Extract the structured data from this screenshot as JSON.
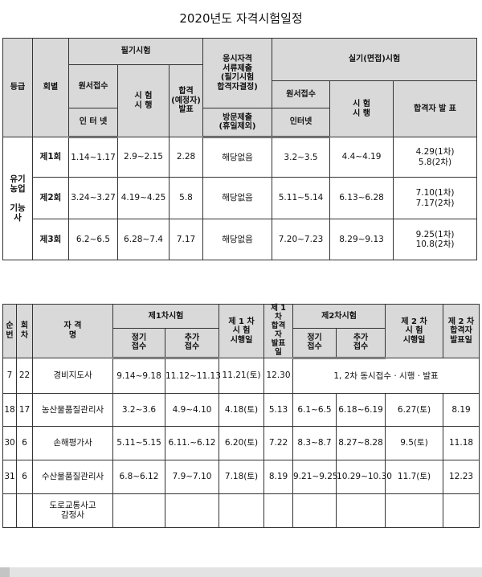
{
  "title": "2020년도 자격시험일정",
  "t1": {
    "h": {
      "grade": "등급",
      "round": "회별",
      "written": "필기시험",
      "qual": "응시자격\n서류제출\n(필기시험\n합격자결정)",
      "practical": "실기(면접)시험",
      "w_apply": "원서접수",
      "w_exam": "시 험\n시 행",
      "w_pass": "합격\n(예정자)\n발표",
      "p_apply": "원서접수",
      "p_exam": "시 험\n시 행",
      "p_pass": "합격자 발  표",
      "w_internet": "인 터 넷",
      "visit": "방문제출\n(휴일제외)",
      "p_internet": "인터넷"
    },
    "grade_name": "유기\n농업\n\n기능\n사",
    "rows": [
      {
        "round": "제1회",
        "w_apply": "1.14~1.17",
        "w_exam": "2.9~2.15",
        "w_pass": "2.28",
        "qual": "해당없음",
        "p_apply": "3.2~3.5",
        "p_exam": "4.4~4.19",
        "p_pass": "4.29(1차)\n5.8(2차)"
      },
      {
        "round": "제2회",
        "w_apply": "3.24~3.27",
        "w_exam": "4.19~4.25",
        "w_pass": "5.8",
        "qual": "해당없음",
        "p_apply": "5.11~5.14",
        "p_exam": "6.13~6.28",
        "p_pass": "7.10(1차)\n7.17(2차)"
      },
      {
        "round": "제3회",
        "w_apply": "6.2~6.5",
        "w_exam": "6.28~7.4",
        "w_pass": "7.17",
        "qual": "해당없음",
        "p_apply": "7.20~7.23",
        "p_exam": "8.29~9.13",
        "p_pass": "9.25(1차)\n10.8(2차)"
      }
    ]
  },
  "t2": {
    "h": {
      "no": "순\n번",
      "times": "회\n차",
      "name": "자       격\n명",
      "first": "제1차시험",
      "f_reg": "정기\n접수",
      "f_add": "추가\n접수",
      "f_date": "제 1 차\n시 험\n시행일",
      "f_pass": "제 1\n차\n합격\n자\n발표\n일",
      "second": "제2차시험",
      "s_reg": "정기\n접수",
      "s_add": "추가\n접수",
      "s_date": "제 2 차\n시  험\n시행일",
      "s_pass": "제 2 차\n합격자\n발표일"
    },
    "rows": [
      {
        "no": "7",
        "times": "22",
        "name": "경비지도사",
        "f_reg": "9.14~9.18",
        "f_add": "11.12~11.13",
        "f_date": "11.21(토)",
        "f_pass": "12.30",
        "note": "1, 2차 동시접수 · 시행 · 발표"
      },
      {
        "no": "18",
        "times": "17",
        "name": "농산물품질관리사",
        "f_reg": "3.2~3.6",
        "f_add": "4.9~4.10",
        "f_date": "4.18(토)",
        "f_pass": "5.13",
        "s_reg": "6.1~6.5",
        "s_add": "6.18~6.19",
        "s_date": "6.27(토)",
        "s_pass": "8.19"
      },
      {
        "no": "30",
        "times": "6",
        "name": "손해평가사",
        "f_reg": "5.11~5.15",
        "f_add": "6.11.~6.12",
        "f_date": "6.20(토)",
        "f_pass": "7.22",
        "s_reg": "8.3~8.7",
        "s_add": "8.27~8.28",
        "s_date": "9.5(토)",
        "s_pass": "11.18"
      },
      {
        "no": "31",
        "times": "6",
        "name": "수산물품질관리사",
        "f_reg": "6.8~6.12",
        "f_add": "7.9~7.10",
        "f_date": "7.18(토)",
        "f_pass": "8.19",
        "s_reg": "9.21~9.25",
        "s_add": "10.29~10.30",
        "s_date": "11.7(토)",
        "s_pass": "12.23"
      },
      {
        "no": "",
        "times": "",
        "name": "도로교통사고\n감정사",
        "f_reg": "",
        "f_add": "",
        "f_date": "",
        "f_pass": "",
        "s_reg": "",
        "s_add": "",
        "s_date": "",
        "s_pass": ""
      }
    ]
  }
}
